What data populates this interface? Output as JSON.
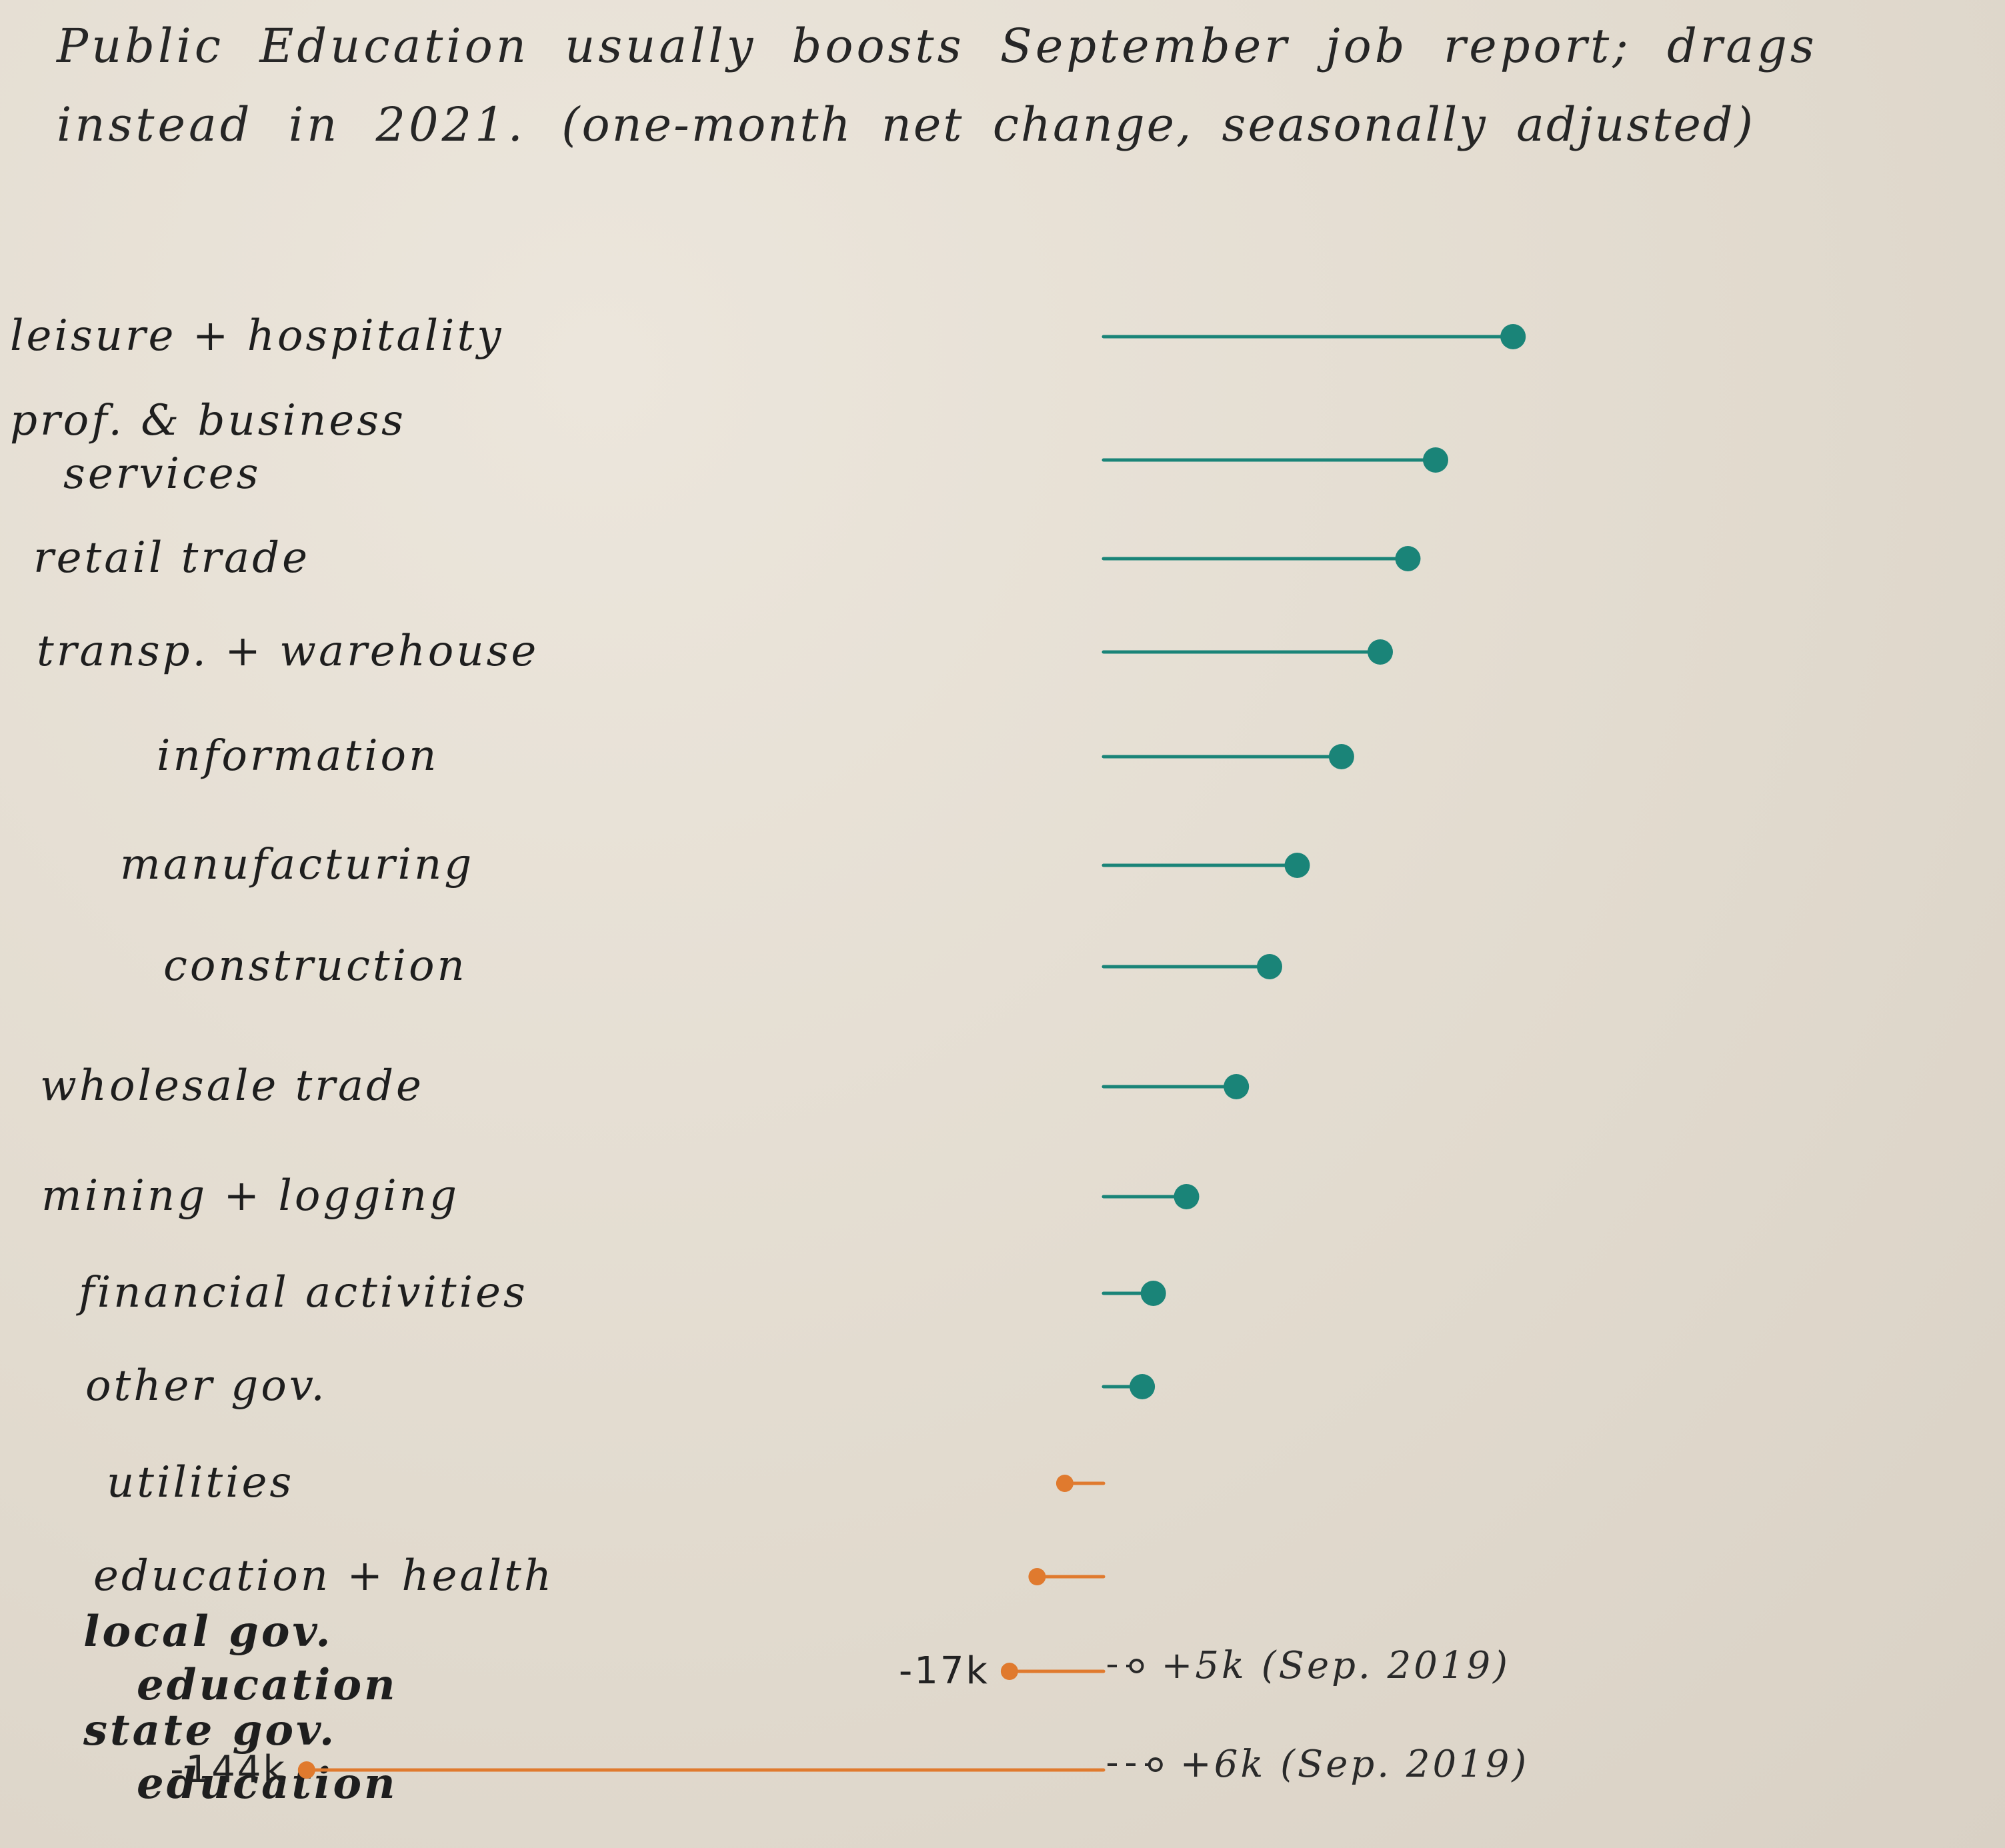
{
  "title": "Public Education usually boosts September job report; drags instead in 2021.",
  "subtitle": "(one-month net change, seasonally adjusted)",
  "colors": {
    "positive": "#1a8478",
    "negative": "#e07a2e",
    "reference": "#2a2a2a"
  },
  "chart_data": {
    "type": "lollipop",
    "title": "Public Education usually boosts September job report; drags instead in 2021.",
    "subtitle": "(one-month net change, seasonally adjusted)",
    "unit": "thousands of jobs",
    "zero_baseline": 0,
    "categories": [
      {
        "label": [
          "leisure + hospitality"
        ],
        "value": 74,
        "bold": false
      },
      {
        "label": [
          "prof. & business",
          "services"
        ],
        "value": 60,
        "bold": false
      },
      {
        "label": [
          "retail trade"
        ],
        "value": 55,
        "bold": false
      },
      {
        "label": [
          "transp. + warehouse"
        ],
        "value": 50,
        "bold": false
      },
      {
        "label": [
          "information"
        ],
        "value": 43,
        "bold": false
      },
      {
        "label": [
          "manufacturing"
        ],
        "value": 35,
        "bold": false
      },
      {
        "label": [
          "construction"
        ],
        "value": 30,
        "bold": false
      },
      {
        "label": [
          "wholesale trade"
        ],
        "value": 24,
        "bold": false
      },
      {
        "label": [
          "mining + logging"
        ],
        "value": 15,
        "bold": false
      },
      {
        "label": [
          "financial activities"
        ],
        "value": 9,
        "bold": false
      },
      {
        "label": [
          "other gov."
        ],
        "value": 7,
        "bold": false
      },
      {
        "label": [
          "utilities"
        ],
        "value": -7,
        "bold": false
      },
      {
        "label": [
          "education + health"
        ],
        "value": -12,
        "bold": false
      },
      {
        "label": [
          "local gov.",
          "education"
        ],
        "value": -17,
        "bold": true,
        "value_label": "-17k",
        "reference_value": 5,
        "reference_label": "+5k (Sep. 2019)"
      },
      {
        "label": [
          "state gov.",
          "education"
        ],
        "value": -144,
        "bold": true,
        "value_label": "-144k",
        "reference_value": 6,
        "reference_label": "+6k (Sep. 2019)"
      }
    ]
  }
}
